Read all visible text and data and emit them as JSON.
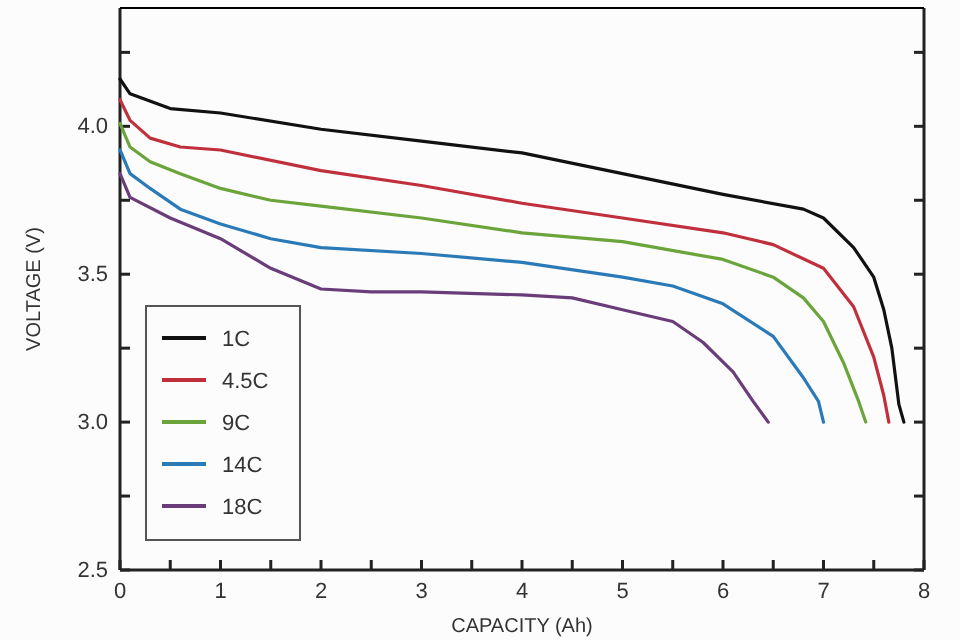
{
  "chart_data": {
    "type": "line",
    "xlabel": "CAPACITY (Ah)",
    "ylabel": "VOLTAGE (V)",
    "xlim": [
      0,
      8
    ],
    "ylim": [
      2.5,
      4.4
    ],
    "xticks": [
      0,
      {
        "value": 0.5,
        "label": null
      },
      1,
      {
        "value": 1.5,
        "label": null
      },
      2,
      {
        "value": 2.5,
        "label": null
      },
      3,
      {
        "value": 3.5,
        "label": null
      },
      4,
      {
        "value": 4.5,
        "label": null
      },
      5,
      {
        "value": 5.5,
        "label": null
      },
      6,
      {
        "value": 6.5,
        "label": null
      },
      7,
      {
        "value": 7.5,
        "label": null
      },
      8
    ],
    "yticks": [
      2.5,
      {
        "value": 2.75,
        "label": null
      },
      {
        "value": 3,
        "label": "3.0"
      },
      {
        "value": 3.25,
        "label": null
      },
      3.5,
      {
        "value": 3.75,
        "label": null
      },
      {
        "value": 4,
        "label": "4.0"
      },
      {
        "value": 4.25,
        "label": null
      }
    ],
    "grid": false,
    "legend": "bottom left",
    "marker": "none",
    "line_style": "solid",
    "series": [
      {
        "name": "1C",
        "color": "#111111",
        "x": [
          0,
          0.1,
          0.5,
          1,
          2,
          3,
          4,
          5,
          6,
          6.8,
          7,
          7.3,
          7.5,
          7.6,
          7.68,
          7.75,
          7.8
        ],
        "values": [
          4.16,
          4.11,
          4.06,
          4.045,
          3.99,
          3.95,
          3.91,
          3.84,
          3.77,
          3.72,
          3.69,
          3.59,
          3.49,
          3.38,
          3.25,
          3.06,
          3.0
        ]
      },
      {
        "name": "4.5C",
        "color": "#c0303c",
        "x": [
          0,
          0.1,
          0.3,
          0.6,
          1,
          2,
          3,
          4,
          5,
          6,
          6.5,
          7,
          7.3,
          7.5,
          7.6,
          7.65
        ],
        "values": [
          4.09,
          4.02,
          3.96,
          3.93,
          3.92,
          3.85,
          3.8,
          3.74,
          3.69,
          3.64,
          3.6,
          3.52,
          3.39,
          3.22,
          3.09,
          3.0
        ]
      },
      {
        "name": "9C",
        "color": "#6aa43a",
        "x": [
          0,
          0.1,
          0.3,
          0.6,
          1,
          1.5,
          2,
          3,
          4,
          5,
          6,
          6.5,
          6.8,
          7,
          7.2,
          7.35,
          7.42
        ],
        "values": [
          4.01,
          3.93,
          3.88,
          3.84,
          3.79,
          3.75,
          3.73,
          3.69,
          3.64,
          3.61,
          3.55,
          3.49,
          3.42,
          3.34,
          3.2,
          3.07,
          3.0
        ]
      },
      {
        "name": "14C",
        "color": "#2a7ab8",
        "x": [
          0,
          0.1,
          0.3,
          0.6,
          1,
          1.5,
          2,
          3,
          4,
          5,
          5.5,
          6,
          6.5,
          6.8,
          6.95,
          7
        ],
        "values": [
          3.92,
          3.84,
          3.79,
          3.72,
          3.67,
          3.62,
          3.59,
          3.57,
          3.54,
          3.49,
          3.46,
          3.4,
          3.29,
          3.15,
          3.07,
          3.0
        ]
      },
      {
        "name": "18C",
        "color": "#6a3d7a",
        "x": [
          0,
          0.1,
          0.5,
          1,
          1.5,
          2,
          2.5,
          3,
          4,
          4.5,
          5,
          5.5,
          5.8,
          6.1,
          6.3,
          6.45
        ],
        "values": [
          3.84,
          3.76,
          3.69,
          3.62,
          3.52,
          3.45,
          3.44,
          3.44,
          3.43,
          3.42,
          3.38,
          3.34,
          3.27,
          3.17,
          3.07,
          3.0
        ]
      }
    ]
  }
}
